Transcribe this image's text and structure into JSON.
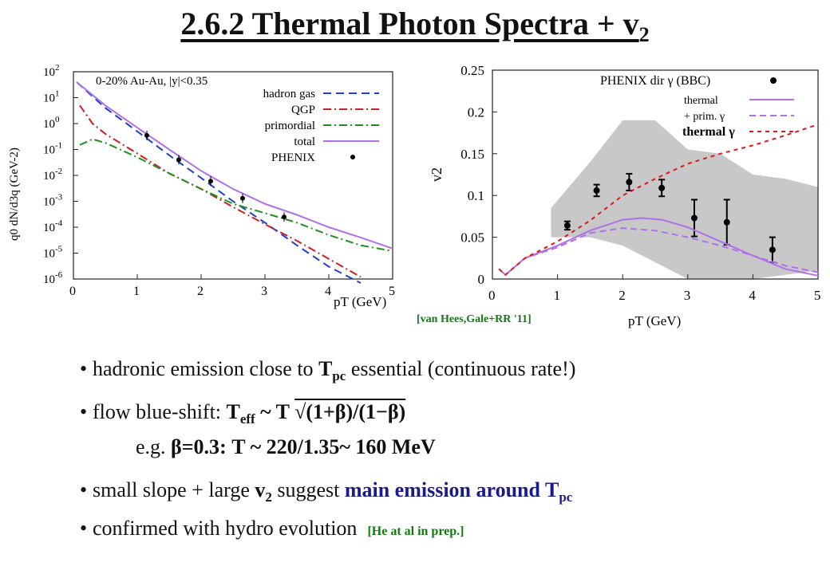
{
  "title": "2.6.2 Thermal Photon Spectra + v",
  "title_sub": "2",
  "left_plot": {
    "ylabel": "q0 dN/d3q (GeV-2)",
    "xlabel": "pT (GeV)",
    "header": "0-20% Au-Au, |y|<0.35",
    "legend": [
      "hadron gas",
      "QGP",
      "primordial",
      "total",
      "PHENIX"
    ],
    "xticks": [
      "0",
      "1",
      "2",
      "3",
      "4",
      "5"
    ],
    "yticks": [
      "10^2",
      "10^1",
      "10^0",
      "10^-1",
      "10^-2",
      "10^-3",
      "10^-4",
      "10^-5",
      "10^-6"
    ]
  },
  "right_plot": {
    "ylabel": "v2",
    "xlabel": "pT (GeV)",
    "legend": [
      "PHENIX dir γ (BBC)",
      "thermal",
      "+ prim. γ",
      "thermal γ"
    ],
    "xticks": [
      "0",
      "1",
      "2",
      "3",
      "4",
      "5"
    ],
    "yticks": [
      "0",
      "0.05",
      "0.1",
      "0.15",
      "0.2",
      "0.25"
    ],
    "citation": "[van Hees,Gale+RR '11]"
  },
  "chart_data": [
    {
      "type": "line",
      "title": "",
      "xlabel": "pT (GeV)",
      "ylabel": "q0 dN/d3q (GeV-2)",
      "xlim": [
        0,
        5
      ],
      "ylim": [
        1e-06,
        100
      ],
      "yscale": "log",
      "series": [
        {
          "name": "hadron gas",
          "color": "#1f3fd0",
          "dash": "10,6",
          "x": [
            0.05,
            0.5,
            1,
            1.5,
            2,
            2.5,
            3,
            3.5,
            4,
            4.5
          ],
          "y": [
            40,
            4,
            0.5,
            0.06,
            0.008,
            0.001,
            0.00015,
            2e-05,
            3e-06,
            7e-07
          ]
        },
        {
          "name": "QGP",
          "color": "#d01f1f",
          "dash": "10,4,2,4",
          "x": [
            0.1,
            0.3,
            0.5,
            1,
            1.5,
            2,
            2.5,
            3,
            3.5,
            4,
            4.5
          ],
          "y": [
            5,
            1,
            0.4,
            0.07,
            0.012,
            0.003,
            0.0006,
            0.00013,
            3e-05,
            6e-06,
            1.2e-06
          ]
        },
        {
          "name": "primordial",
          "color": "#1f8f1f",
          "dash": "10,4,2,4",
          "x": [
            0.1,
            0.3,
            0.5,
            1,
            1.5,
            2,
            2.5,
            3,
            3.5,
            4,
            4.5,
            5
          ],
          "y": [
            0.15,
            0.25,
            0.18,
            0.05,
            0.012,
            0.003,
            0.0008,
            0.00035,
            0.00015,
            5e-05,
            2e-05,
            1.2e-05
          ]
        },
        {
          "name": "total",
          "color": "#b070e8",
          "dash": "",
          "x": [
            0.05,
            0.5,
            1,
            1.5,
            2,
            2.5,
            3,
            3.5,
            4,
            4.5,
            5
          ],
          "y": [
            40,
            5,
            0.7,
            0.1,
            0.015,
            0.003,
            0.0008,
            0.0003,
            0.0001,
            4e-05,
            1.5e-05
          ]
        },
        {
          "name": "PHENIX",
          "color": "#000000",
          "points": true,
          "x": [
            1.15,
            1.65,
            2.15,
            2.65,
            3.3
          ],
          "y": [
            0.35,
            0.04,
            0.006,
            0.0013,
            0.00025
          ]
        }
      ]
    },
    {
      "type": "line",
      "title": "",
      "xlabel": "pT (GeV)",
      "ylabel": "v2",
      "xlim": [
        0,
        5
      ],
      "ylim": [
        0,
        0.25
      ],
      "series": [
        {
          "name": "PHENIX dir γ (BBC)",
          "color": "#000000",
          "points": true,
          "x": [
            1.15,
            1.6,
            2.1,
            2.6,
            3.1,
            3.6,
            4.3
          ],
          "y": [
            0.064,
            0.106,
            0.116,
            0.109,
            0.073,
            0.068,
            0.035
          ],
          "err": [
            0.005,
            0.007,
            0.01,
            0.01,
            0.022,
            0.027,
            0.015
          ]
        },
        {
          "name": "thermal",
          "color": "#b070e8",
          "dash": "",
          "x": [
            0.1,
            0.2,
            0.5,
            1,
            1.5,
            2,
            2.3,
            2.6,
            3,
            3.5,
            4,
            4.5,
            5
          ],
          "y": [
            0.012,
            0.005,
            0.025,
            0.04,
            0.058,
            0.071,
            0.073,
            0.071,
            0.062,
            0.045,
            0.028,
            0.012,
            0.004
          ]
        },
        {
          "name": "+ prim. γ",
          "color": "#b070e8",
          "dash": "8,5",
          "x": [
            0.1,
            0.2,
            0.5,
            1,
            1.5,
            2,
            2.5,
            3,
            3.5,
            4,
            4.5,
            5
          ],
          "y": [
            0.012,
            0.005,
            0.025,
            0.038,
            0.055,
            0.061,
            0.058,
            0.05,
            0.04,
            0.028,
            0.016,
            0.008
          ]
        },
        {
          "name": "thermal γ",
          "color": "#e01818",
          "dash": "5,5",
          "x": [
            0.1,
            0.2,
            0.5,
            1,
            1.5,
            2,
            2.5,
            3,
            3.5,
            4,
            4.5,
            5
          ],
          "y": [
            0.012,
            0.005,
            0.025,
            0.045,
            0.07,
            0.1,
            0.12,
            0.138,
            0.15,
            0.16,
            0.172,
            0.185
          ]
        }
      ],
      "band": {
        "x": [
          0.9,
          1.5,
          2,
          2.5,
          3,
          3.5,
          4,
          4.5,
          5
        ],
        "upper": [
          0.085,
          0.14,
          0.19,
          0.19,
          0.155,
          0.15,
          0.125,
          0.12,
          0.11
        ],
        "lower": [
          0.05,
          0.05,
          0.04,
          0.02,
          0.0,
          0.0,
          0.0,
          0.005,
          0.01
        ],
        "color": "#c8c8c8"
      }
    }
  ],
  "bullets": {
    "b1_pre": "hadronic emission close to ",
    "b1_T": "T",
    "b1_sub": "pc",
    "b1_post": " essential (continuous rate!)",
    "b2_pre": "flow blue-shift: ",
    "b2_T": "T",
    "b2_sub": "eff",
    "b2_mid": " ~ T ",
    "b2_root": "√(1+β)/(1−β)",
    "b3_pre": "e.g. ",
    "b3_beta": "β=0.3",
    "b3_post": ": T ~ 220/1.35~ 160 MeV",
    "b4_pre": "small slope + large ",
    "b4_v": "v",
    "b4_vsub": "2",
    "b4_mid": " suggest ",
    "b4_blue": "main emission around T",
    "b4_bluesub": "pc",
    "b5_pre": "confirmed with hydro evolution",
    "b5_note": "[He at al in prep.]"
  }
}
